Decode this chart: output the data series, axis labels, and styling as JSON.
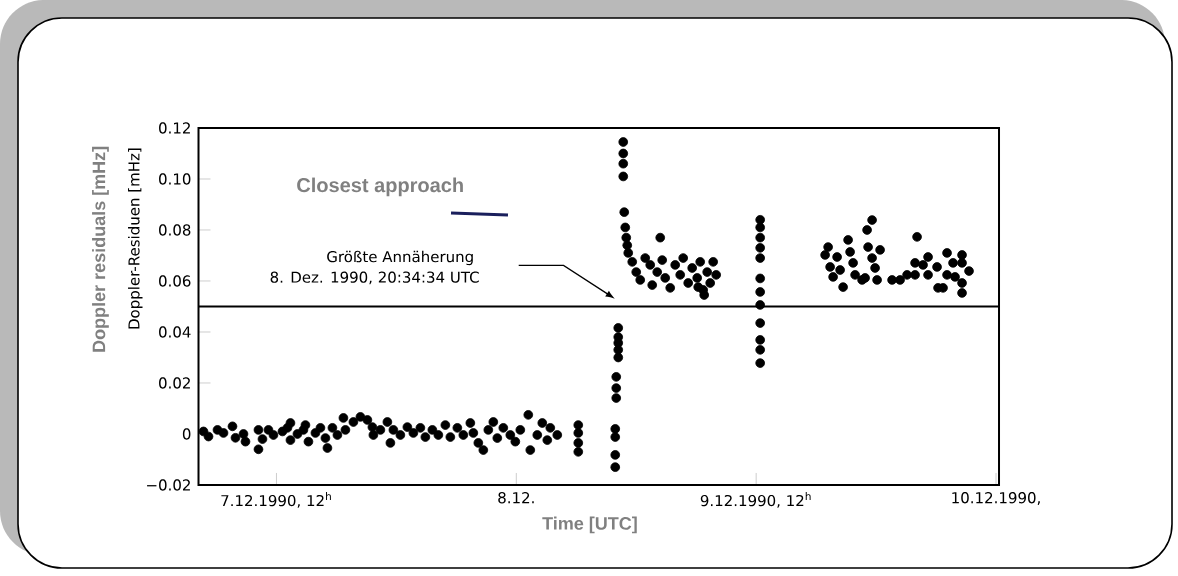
{
  "chart_data": {
    "type": "scatter",
    "xlabel": "Time [UTC]",
    "ylabel": "Doppler residuals [mHz]",
    "annotations": [
      "Closest approach",
      "Doppler-Residuen  [mHz]",
      "Größte Annäherung",
      "8. Dez. 1990, 20:34:34 UTC"
    ],
    "marker": "circle",
    "xlim": [
      "1990-12-07T04:12",
      "1990-12-10T12:18"
    ],
    "ylim": [
      -0.02,
      0.12
    ],
    "xticks": [
      {
        "value": "1990-12-07T12:00",
        "label": "7.12.1990, 12$^{h}$"
      },
      {
        "value": "1990-12-08T12:00",
        "label": "8.12."
      },
      {
        "value": "1990-12-09T12:00",
        "label": "9.12.1990, 12$^{h}$"
      },
      {
        "value": "1990-12-10T12:00",
        "label": "10.12.1990,"
      }
    ],
    "yticks": [
      {
        "value": -0.02,
        "label": "−0.02"
      },
      0,
      0.02,
      0.04,
      0.06,
      0.08,
      {
        "value": 0.1,
        "label": "0.10"
      },
      0.12
    ],
    "ref_lines": [
      {
        "axis": "y",
        "value": 0.05
      }
    ],
    "x": [
      "1990-12-07T04:42",
      "1990-12-07T05:12",
      "1990-12-07T06:06",
      "1990-12-07T06:42",
      "1990-12-07T07:36",
      "1990-12-07T07:54",
      "1990-12-07T08:42",
      "1990-12-07T08:54",
      "1990-12-07T10:12",
      "1990-12-07T10:12",
      "1990-12-07T10:36",
      "1990-12-07T11:12",
      "1990-12-07T11:42",
      "1990-12-07T12:36",
      "1990-12-07T13:06",
      "1990-12-07T13:24",
      "1990-12-07T13:24",
      "1990-12-07T14:06",
      "1990-12-07T14:42",
      "1990-12-07T14:54",
      "1990-12-07T15:12",
      "1990-12-07T15:54",
      "1990-12-07T16:24",
      "1990-12-07T16:54",
      "1990-12-07T17:06",
      "1990-12-07T17:36",
      "1990-12-07T18:06",
      "1990-12-07T18:42",
      "1990-12-07T18:54",
      "1990-12-07T19:42",
      "1990-12-07T20:24",
      "1990-12-07T21:06",
      "1990-12-07T21:36",
      "1990-12-07T21:42",
      "1990-12-07T22:24",
      "1990-12-07T23:06",
      "1990-12-07T23:24",
      "1990-12-07T23:42",
      "1990-12-08T00:24",
      "1990-12-08T01:06",
      "1990-12-08T01:42",
      "1990-12-08T02:24",
      "1990-12-08T02:54",
      "1990-12-08T03:36",
      "1990-12-08T04:12",
      "1990-12-08T04:54",
      "1990-12-08T05:24",
      "1990-12-08T06:06",
      "1990-12-08T06:42",
      "1990-12-08T07:24",
      "1990-12-08T07:42",
      "1990-12-08T08:12",
      "1990-12-08T08:42",
      "1990-12-08T09:12",
      "1990-12-08T09:42",
      "1990-12-08T10:06",
      "1990-12-08T10:42",
      "1990-12-08T11:24",
      "1990-12-08T11:54",
      "1990-12-08T12:24",
      "1990-12-08T13:12",
      "1990-12-08T13:24",
      "1990-12-08T14:06",
      "1990-12-08T14:36",
      "1990-12-08T15:06",
      "1990-12-08T15:24",
      "1990-12-08T16:06",
      "1990-12-08T18:12",
      "1990-12-08T18:12",
      "1990-12-08T18:12",
      "1990-12-08T18:12",
      "1990-12-08T22:12",
      "1990-12-08T22:12",
      "1990-12-08T22:12",
      "1990-12-08T22:12",
      "1990-12-08T22:12",
      "1990-12-08T22:00",
      "1990-12-08T22:00",
      "1990-12-08T22:00",
      "1990-12-08T21:54",
      "1990-12-08T21:54",
      "1990-12-08T21:54",
      "1990-12-08T21:54",
      "1990-12-08T22:42",
      "1990-12-08T22:42",
      "1990-12-08T22:42",
      "1990-12-08T22:42",
      "1990-12-08T22:48",
      "1990-12-08T22:54",
      "1990-12-08T23:00",
      "1990-12-08T23:06",
      "1990-12-08T23:12",
      "1990-12-08T23:36",
      "1990-12-09T00:00",
      "1990-12-09T00:24",
      "1990-12-09T00:54",
      "1990-12-09T01:24",
      "1990-12-09T01:36",
      "1990-12-09T02:06",
      "1990-12-09T02:36",
      "1990-12-09T02:54",
      "1990-12-09T03:24",
      "1990-12-09T03:54",
      "1990-12-09T04:24",
      "1990-12-09T04:42",
      "1990-12-09T05:12",
      "1990-12-09T05:36",
      "1990-12-09T06:06",
      "1990-12-09T06:24",
      "1990-12-09T06:42",
      "1990-12-09T07:06",
      "1990-12-09T07:24",
      "1990-12-09T07:42",
      "1990-12-09T08:00",
      "1990-12-09T06:48",
      "1990-12-09T06:12",
      "1990-12-09T02:24",
      "1990-12-09T12:24",
      "1990-12-09T12:24",
      "1990-12-09T12:24",
      "1990-12-09T12:24",
      "1990-12-09T12:24",
      "1990-12-09T12:24",
      "1990-12-09T12:24",
      "1990-12-09T12:24",
      "1990-12-09T12:24",
      "1990-12-09T12:24",
      "1990-12-09T12:24",
      "1990-12-09T12:24",
      "1990-12-09T19:12",
      "1990-12-09T20:06",
      "1990-12-09T19:24",
      "1990-12-09T19:42",
      "1990-12-09T20:42",
      "1990-12-09T21:12",
      "1990-12-09T21:24",
      "1990-12-09T21:42",
      "1990-12-09T21:54",
      "1990-12-09T22:36",
      "1990-12-09T23:06",
      "1990-12-09T23:36",
      "1990-12-09T23:12",
      "1990-12-09T23:36",
      "1990-12-09T23:54",
      "1990-12-09T22:54",
      "1990-12-10T00:06",
      "1990-12-10T00:24",
      "1990-12-09T18:54",
      "1990-12-09T20:24",
      "1990-12-10T01:36",
      "1990-12-10T02:24",
      "1990-12-10T03:06",
      "1990-12-10T03:54",
      "1990-12-10T04:06",
      "1990-12-10T03:54",
      "1990-12-10T04:42",
      "1990-12-10T05:12",
      "1990-12-10T05:12",
      "1990-12-10T06:06",
      "1990-12-10T06:12",
      "1990-12-10T06:42",
      "1990-12-10T07:06",
      "1990-12-10T07:06",
      "1990-12-10T07:54",
      "1990-12-10T07:42",
      "1990-12-10T08:36",
      "1990-12-10T08:36",
      "1990-12-10T08:36",
      "1990-12-10T08:36",
      "1990-12-10T09:18"
    ],
    "series": [
      {
        "color": "#000000",
        "values": [
          0.001,
          -0.001,
          0.0016,
          0.0004,
          0.003,
          -0.0015,
          0,
          -0.003,
          0.0016,
          -0.006,
          -0.002,
          0.0016,
          -0.0004,
          0.001,
          0.0024,
          0.0043,
          -0.0024,
          0,
          0.0016,
          0.0035,
          -0.003,
          0.0004,
          0.0024,
          -0.0016,
          -0.0055,
          0.0024,
          -0.0004,
          0.0063,
          0.0016,
          0.0047,
          0.0067,
          0.0055,
          0.0027,
          -0.0004,
          0.0016,
          0.0047,
          -0.0035,
          0.0016,
          -0.0004,
          0.0027,
          0.0004,
          0.0024,
          -0.0012,
          0.0016,
          -0.0004,
          0.0035,
          -0.0012,
          0.0024,
          -0.0004,
          0.0043,
          0.0004,
          -0.0035,
          -0.0063,
          0.0016,
          0.0047,
          -0.0016,
          0.0024,
          -0.0004,
          -0.003,
          0.0016,
          0.0075,
          -0.0063,
          -0.0004,
          0.0043,
          -0.0024,
          0.0024,
          -0.0004,
          0.0035,
          0.0004,
          -0.0035,
          -0.007,
          0.0416,
          0.038,
          0.0357,
          0.033,
          0.03,
          0.0224,
          0.018,
          0.0141,
          0.002,
          -0.0012,
          -0.0082,
          -0.013,
          0.1145,
          0.11,
          0.106,
          0.101,
          0.087,
          0.081,
          0.077,
          0.074,
          0.071,
          0.0675,
          0.0635,
          0.0604,
          0.069,
          0.0663,
          0.0584,
          0.0635,
          0.0682,
          0.0612,
          0.0573,
          0.0663,
          0.0624,
          0.069,
          0.0592,
          0.0651,
          0.0612,
          0.0675,
          0.0565,
          0.0635,
          0.0592,
          0.0675,
          0.0624,
          0.0545,
          0.0576,
          0.077,
          0.084,
          0.081,
          0.077,
          0.073,
          0.069,
          0.061,
          0.0557,
          0.0506,
          0.0435,
          0.0369,
          0.033,
          0.0278,
          0.0733,
          0.0694,
          0.0655,
          0.0616,
          0.0576,
          0.0761,
          0.0714,
          0.0671,
          0.0624,
          0.0604,
          0.08,
          0.0839,
          0.0733,
          0.069,
          0.0651,
          0.0612,
          0.0604,
          0.0722,
          0.0702,
          0.0643,
          0.0604,
          0.0604,
          0.0624,
          0.0624,
          0.0773,
          0.0671,
          0.0663,
          0.0694,
          0.0624,
          0.0655,
          0.0573,
          0.0573,
          0.071,
          0.0624,
          0.0616,
          0.0671,
          0.0702,
          0.0671,
          0.0592,
          0.0553,
          0.0639
        ]
      }
    ]
  }
}
